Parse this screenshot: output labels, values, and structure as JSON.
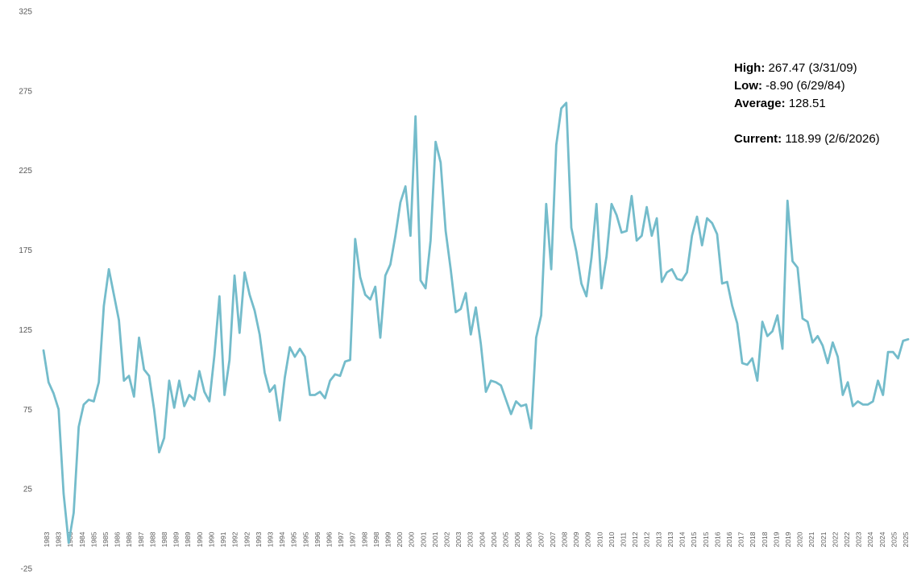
{
  "stats": {
    "high_label": "High:",
    "high_value": "267.47 (3/31/09)",
    "low_label": "Low:",
    "low_value": "-8.90 (6/29/84)",
    "avg_label": "Average:",
    "avg_value": "128.51",
    "current_label": "Current:",
    "current_value": "118.99 (2/6/2026)"
  },
  "colors": {
    "line": "#74BCCB"
  },
  "chart_data": {
    "type": "line",
    "title": "",
    "xlabel": "",
    "ylabel": "",
    "ylim": [
      -25,
      325
    ],
    "yticks": [
      -25,
      25,
      75,
      125,
      175,
      225,
      275,
      325
    ],
    "grid": false,
    "legend": "none",
    "xtick_labels": [
      "1983",
      "1983",
      "1983",
      "1984",
      "1985",
      "1985",
      "1986",
      "1986",
      "1987",
      "1988",
      "1988",
      "1989",
      "1989",
      "1990",
      "1990",
      "1991",
      "1992",
      "1992",
      "1993",
      "1993",
      "1994",
      "1995",
      "1995",
      "1996",
      "1996",
      "1997",
      "1997",
      "1998",
      "1998",
      "1999",
      "2000",
      "2000",
      "2001",
      "2001",
      "2002",
      "2003",
      "2003",
      "2004",
      "2004",
      "2005",
      "2006",
      "2006",
      "2007",
      "2007",
      "2008",
      "2009",
      "2009",
      "2010",
      "2010",
      "2011",
      "2012",
      "2012",
      "2013",
      "2013",
      "2014",
      "2015",
      "2015",
      "2016",
      "2016",
      "2017",
      "2018",
      "2018",
      "2019",
      "2019",
      "2020",
      "2021",
      "2021",
      "2022",
      "2022",
      "2023",
      "2024",
      "2024",
      "2025",
      "2025"
    ],
    "series": [
      {
        "values": [
          112,
          92,
          85,
          75,
          22,
          -8.9,
          10,
          64,
          78,
          81,
          80,
          92,
          140,
          163,
          147,
          131,
          93,
          96,
          83,
          120,
          100,
          96,
          75,
          48,
          57,
          93,
          76,
          93,
          77,
          84,
          81,
          99,
          86,
          80,
          109,
          146,
          84,
          106,
          159,
          123,
          161,
          147,
          137,
          122,
          98,
          86,
          90,
          68,
          95,
          114,
          108,
          113,
          108,
          84,
          84,
          86,
          82,
          93,
          97,
          96,
          105,
          106,
          182,
          158,
          147,
          144,
          152,
          120,
          159,
          166,
          184,
          205,
          215,
          184,
          259,
          156,
          151,
          181,
          243,
          230,
          187,
          163,
          136,
          138,
          148,
          122,
          139,
          116,
          86,
          93,
          92,
          90,
          81,
          72,
          80,
          77,
          78,
          63,
          120,
          134,
          204,
          163,
          241,
          264,
          267.47,
          189,
          174,
          154,
          146,
          170,
          204,
          151,
          171,
          204,
          197,
          186,
          187,
          209,
          181,
          184,
          202,
          184,
          195,
          155,
          161,
          163,
          157,
          156,
          161,
          184,
          196,
          178,
          195,
          192,
          185,
          154,
          155,
          140,
          129,
          104,
          103,
          107,
          93,
          130,
          121,
          124,
          134,
          113,
          206,
          168,
          164,
          132,
          130,
          117,
          121,
          115,
          104,
          117,
          108,
          84,
          92,
          77,
          80,
          78,
          78,
          80,
          93,
          84,
          111,
          111,
          107,
          118,
          118.99
        ]
      }
    ]
  }
}
